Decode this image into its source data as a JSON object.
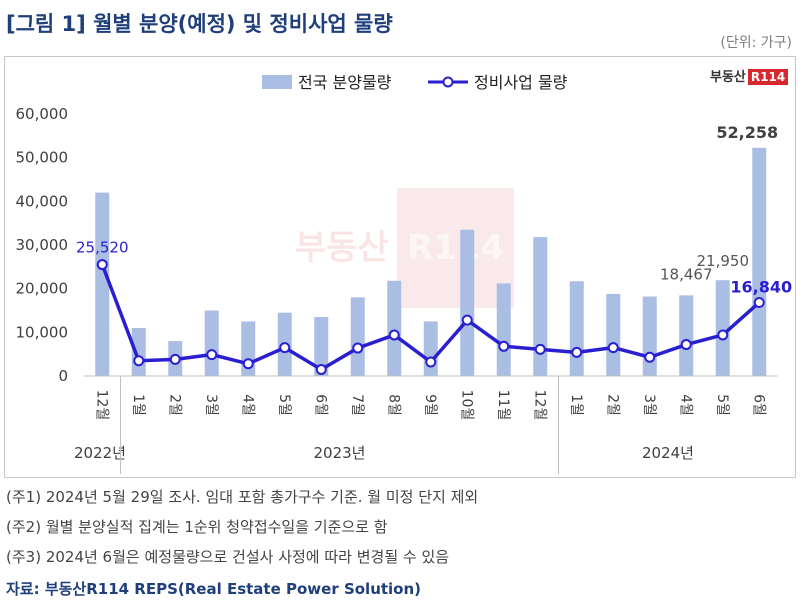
{
  "title": "[그림 1] 월별 분양(예정) 및 정비사업 물량",
  "unit": "(단위: 가구)",
  "logo": {
    "text": "부동산",
    "badge": "R114"
  },
  "watermark": {
    "text": "부동산",
    "badge": "R114"
  },
  "notes": [
    "(주1) 2024년 5월 29일 조사. 임대 포함 총가구수 기준. 월 미정 단지 제외",
    "(주2) 월별 분양실적 집계는 1순위 청약접수일을 기준으로 함",
    "(주3) 2024년 6월은 예정물량으로 건설사 사정에 따라 변경될 수 있음"
  ],
  "source": "자료: 부동산R114 REPS(Real Estate Power Solution)",
  "colors": {
    "bar": "#aabde3",
    "line": "#2a1fd0",
    "marker_fill": "#ffffff",
    "label": "#2a1fd0"
  },
  "chart_data": {
    "type": "bar",
    "categories": [
      "12월",
      "1월",
      "2월",
      "3월",
      "4월",
      "5월",
      "6월",
      "7월",
      "8월",
      "9월",
      "10월",
      "11월",
      "12월",
      "1월",
      "2월",
      "3월",
      "4월",
      "5월",
      "6월"
    ],
    "groups": [
      {
        "label": "2022년",
        "start": 0,
        "end": 0
      },
      {
        "label": "2023년",
        "start": 1,
        "end": 12
      },
      {
        "label": "2024년",
        "start": 13,
        "end": 18
      }
    ],
    "series": [
      {
        "name": "전국 분양물량",
        "type": "bar",
        "values": [
          42000,
          11000,
          8000,
          15000,
          12500,
          14500,
          13500,
          18000,
          21800,
          12500,
          33500,
          21200,
          31800,
          21700,
          18800,
          18200,
          18467,
          21950,
          52258
        ]
      },
      {
        "name": "정비사업 물량",
        "type": "line",
        "values": [
          25520,
          3500,
          3800,
          4900,
          2800,
          6500,
          1500,
          6400,
          9400,
          3200,
          12800,
          6800,
          6100,
          5400,
          6500,
          4300,
          7200,
          9400,
          16840
        ]
      }
    ],
    "ylim": [
      0,
      60000
    ],
    "yticks": [
      "0",
      "10,000",
      "20,000",
      "30,000",
      "40,000",
      "50,000",
      "60,000"
    ],
    "data_labels": [
      {
        "series": 1,
        "index": 0,
        "text": "25,520",
        "bold": false,
        "color": "#2a1fd0"
      },
      {
        "series": 0,
        "index": 17,
        "text": "21,950",
        "bold": false,
        "color": "#555555"
      },
      {
        "series": 0,
        "index": 16,
        "text": "18,467",
        "bold": false,
        "color": "#555555"
      },
      {
        "series": 0,
        "index": 18,
        "text": "52,258",
        "bold": true,
        "color": "#404040"
      },
      {
        "series": 1,
        "index": 18,
        "text": "16,840",
        "bold": true,
        "color": "#2a1fd0"
      }
    ],
    "legend": "top-center",
    "grid": false
  }
}
